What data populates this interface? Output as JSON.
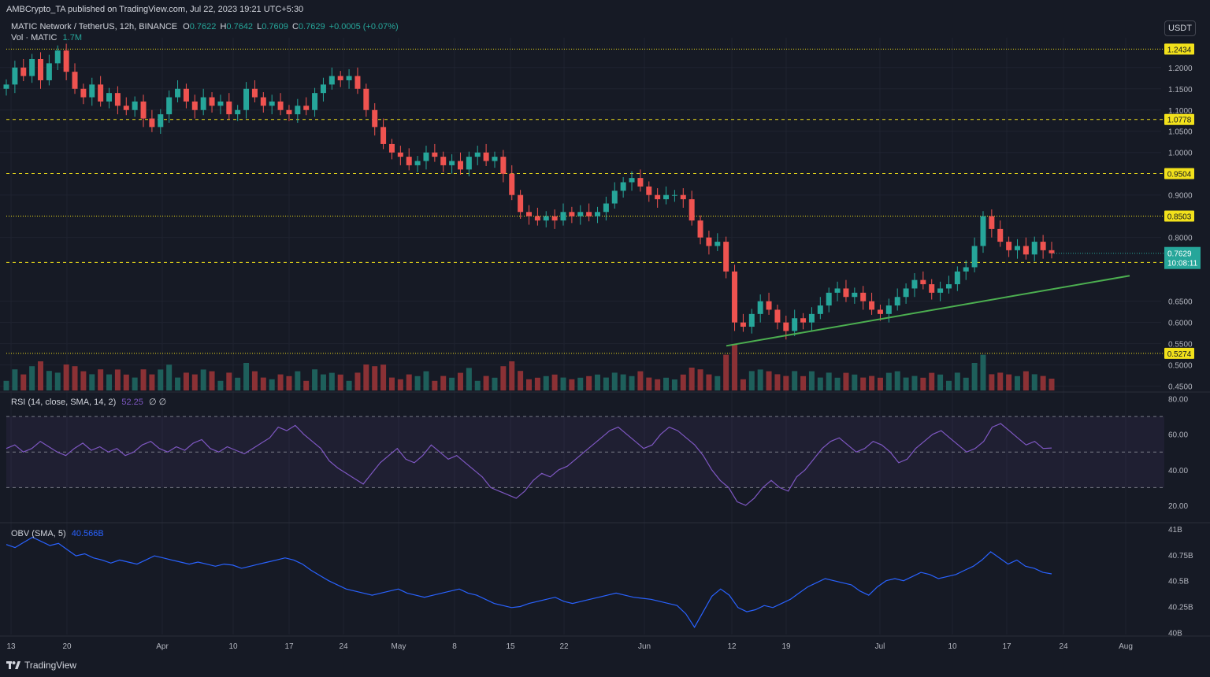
{
  "publisher_line": "AMBCrypto_TA published on TradingView.com, Jul 22, 2023 19:21 UTC+5:30",
  "symbol_line": {
    "name": "MATIC Network / TetherUS, 12h, BINANCE",
    "o_label": "O",
    "o": "0.7622",
    "h_label": "H",
    "h": "0.7642",
    "l_label": "L",
    "l": "0.7609",
    "c_label": "C",
    "c": "0.7629",
    "change": "+0.0005 (+0.07%)"
  },
  "vol_line": {
    "label": "Vol · MATIC",
    "value": "1.7M"
  },
  "currency_button": "USDT",
  "footer_logo": "TradingView",
  "colors": {
    "background": "#161a25",
    "up": "#26a69a",
    "down": "#ef5350",
    "vol_up": "#1e5f5b",
    "vol_down": "#8b3135",
    "level_line": "#f2e11b",
    "trend_line": "#4caf50",
    "rsi_line": "#7e57c2",
    "obv_line": "#2962ff",
    "grid": "#1f2330"
  },
  "chart_data": [
    {
      "type": "candlestick",
      "title": "MATIC Network / TetherUS, 12h, BINANCE",
      "timeframe": "12h",
      "x_tick_labels": [
        "13",
        "20",
        "Apr",
        "10",
        "17",
        "24",
        "May",
        "8",
        "15",
        "22",
        "Jun",
        "12",
        "19",
        "Jul",
        "10",
        "17",
        "24",
        "Aug"
      ],
      "y_tick_labels": [
        "1.2000",
        "1.1500",
        "1.1000",
        "1.0500",
        "1.0000",
        "0.9000",
        "0.8000",
        "0.6500",
        "0.6000",
        "0.5500",
        "0.5000",
        "0.4500"
      ],
      "ylim": [
        0.44,
        1.27
      ],
      "price_levels": [
        {
          "value": 1.2434,
          "label": "1.2434",
          "style": "dotted"
        },
        {
          "value": 1.0778,
          "label": "1.0778",
          "style": "dashed"
        },
        {
          "value": 0.9504,
          "label": "0.9504",
          "style": "dashed"
        },
        {
          "value": 0.8503,
          "label": "0.8503",
          "style": "dotted"
        },
        {
          "value": 0.7414,
          "label": "0.7414",
          "style": "dashed"
        },
        {
          "value": 0.5274,
          "label": "0.5274",
          "style": "dotted"
        }
      ],
      "current_price": {
        "value": 0.7629,
        "label": "0.7629",
        "countdown": "10:08:11"
      },
      "trendline": {
        "start": {
          "x": "Jun 10",
          "y": 0.545
        },
        "end": {
          "x": "Jul 31",
          "y": 0.71
        }
      },
      "close_series_approx": [
        1.16,
        1.2,
        1.18,
        1.22,
        1.17,
        1.21,
        1.24,
        1.19,
        1.15,
        1.13,
        1.16,
        1.12,
        1.14,
        1.11,
        1.1,
        1.12,
        1.08,
        1.06,
        1.09,
        1.13,
        1.15,
        1.12,
        1.1,
        1.13,
        1.11,
        1.12,
        1.09,
        1.1,
        1.15,
        1.13,
        1.11,
        1.12,
        1.1,
        1.09,
        1.11,
        1.1,
        1.14,
        1.16,
        1.18,
        1.17,
        1.18,
        1.15,
        1.1,
        1.06,
        1.02,
        1.0,
        0.99,
        0.97,
        0.98,
        1.0,
        0.99,
        0.97,
        0.98,
        0.96,
        0.99,
        1.0,
        0.98,
        0.99,
        0.95,
        0.9,
        0.86,
        0.85,
        0.84,
        0.85,
        0.84,
        0.86,
        0.85,
        0.86,
        0.85,
        0.86,
        0.88,
        0.91,
        0.93,
        0.94,
        0.92,
        0.9,
        0.89,
        0.9,
        0.9,
        0.89,
        0.84,
        0.8,
        0.78,
        0.79,
        0.72,
        0.6,
        0.59,
        0.62,
        0.65,
        0.63,
        0.6,
        0.58,
        0.61,
        0.6,
        0.62,
        0.64,
        0.67,
        0.68,
        0.66,
        0.67,
        0.65,
        0.63,
        0.62,
        0.64,
        0.66,
        0.68,
        0.7,
        0.69,
        0.67,
        0.68,
        0.69,
        0.72,
        0.73,
        0.78,
        0.85,
        0.82,
        0.79,
        0.77,
        0.78,
        0.76,
        0.79,
        0.77,
        0.7629
      ]
    },
    {
      "type": "line",
      "title": "RSI (14, close, SMA, 14, 2)",
      "legend_value": "52.25",
      "legend_extra": "∅ ∅",
      "y_tick_labels": [
        "80.00",
        "60.00",
        "40.00",
        "20.00"
      ],
      "ylim": [
        12,
        82
      ],
      "bands": {
        "upper": 70,
        "middle": 50,
        "lower": 30
      },
      "values_approx": [
        52,
        54,
        50,
        52,
        56,
        53,
        50,
        48,
        52,
        55,
        51,
        53,
        50,
        52,
        48,
        50,
        54,
        56,
        52,
        50,
        53,
        51,
        55,
        57,
        52,
        50,
        53,
        51,
        49,
        52,
        55,
        58,
        64,
        62,
        65,
        60,
        56,
        52,
        45,
        41,
        38,
        35,
        32,
        38,
        44,
        48,
        52,
        46,
        44,
        48,
        54,
        50,
        46,
        48,
        44,
        40,
        36,
        30,
        28,
        26,
        24,
        28,
        34,
        38,
        36,
        40,
        42,
        46,
        50,
        54,
        58,
        62,
        64,
        60,
        56,
        52,
        54,
        60,
        64,
        62,
        58,
        54,
        48,
        40,
        34,
        30,
        22,
        20,
        24,
        30,
        34,
        30,
        28,
        36,
        40,
        46,
        52,
        56,
        58,
        54,
        50,
        52,
        56,
        54,
        50,
        44,
        46,
        52,
        56,
        60,
        62,
        58,
        54,
        50,
        52,
        56,
        64,
        66,
        62,
        58,
        54,
        56,
        52,
        52.25
      ]
    },
    {
      "type": "line",
      "title": "OBV (SMA, 5)",
      "legend_value": "40.566B",
      "y_tick_labels": [
        "41B",
        "40.75B",
        "40.5B",
        "40.25B",
        "40B"
      ],
      "ylim": [
        39.98,
        41.03
      ],
      "values_approx": [
        40.85,
        40.82,
        40.87,
        40.92,
        40.88,
        40.84,
        40.86,
        40.8,
        40.74,
        40.76,
        40.72,
        40.7,
        40.67,
        40.7,
        40.68,
        40.66,
        40.7,
        40.74,
        40.72,
        40.7,
        40.68,
        40.66,
        40.68,
        40.66,
        40.64,
        40.66,
        40.65,
        40.62,
        40.64,
        40.66,
        40.68,
        40.7,
        40.72,
        40.7,
        40.66,
        40.6,
        40.55,
        40.5,
        40.46,
        40.42,
        40.4,
        40.38,
        40.36,
        40.38,
        40.4,
        40.42,
        40.38,
        40.36,
        40.34,
        40.36,
        40.38,
        40.4,
        40.42,
        40.38,
        40.36,
        40.32,
        40.28,
        40.26,
        40.24,
        40.25,
        40.28,
        40.3,
        40.32,
        40.34,
        40.3,
        40.28,
        40.3,
        40.32,
        40.34,
        40.36,
        40.38,
        40.36,
        40.34,
        40.33,
        40.32,
        40.3,
        40.28,
        40.26,
        40.18,
        40.05,
        40.2,
        40.35,
        40.42,
        40.36,
        40.24,
        40.2,
        40.22,
        40.26,
        40.24,
        40.28,
        40.32,
        40.38,
        40.44,
        40.48,
        40.52,
        40.5,
        40.48,
        40.46,
        40.4,
        40.36,
        40.44,
        40.5,
        40.52,
        40.5,
        40.54,
        40.58,
        40.56,
        40.52,
        40.54,
        40.56,
        40.6,
        40.64,
        40.7,
        40.78,
        40.72,
        40.66,
        40.7,
        40.64,
        40.62,
        40.58,
        40.566
      ]
    }
  ]
}
